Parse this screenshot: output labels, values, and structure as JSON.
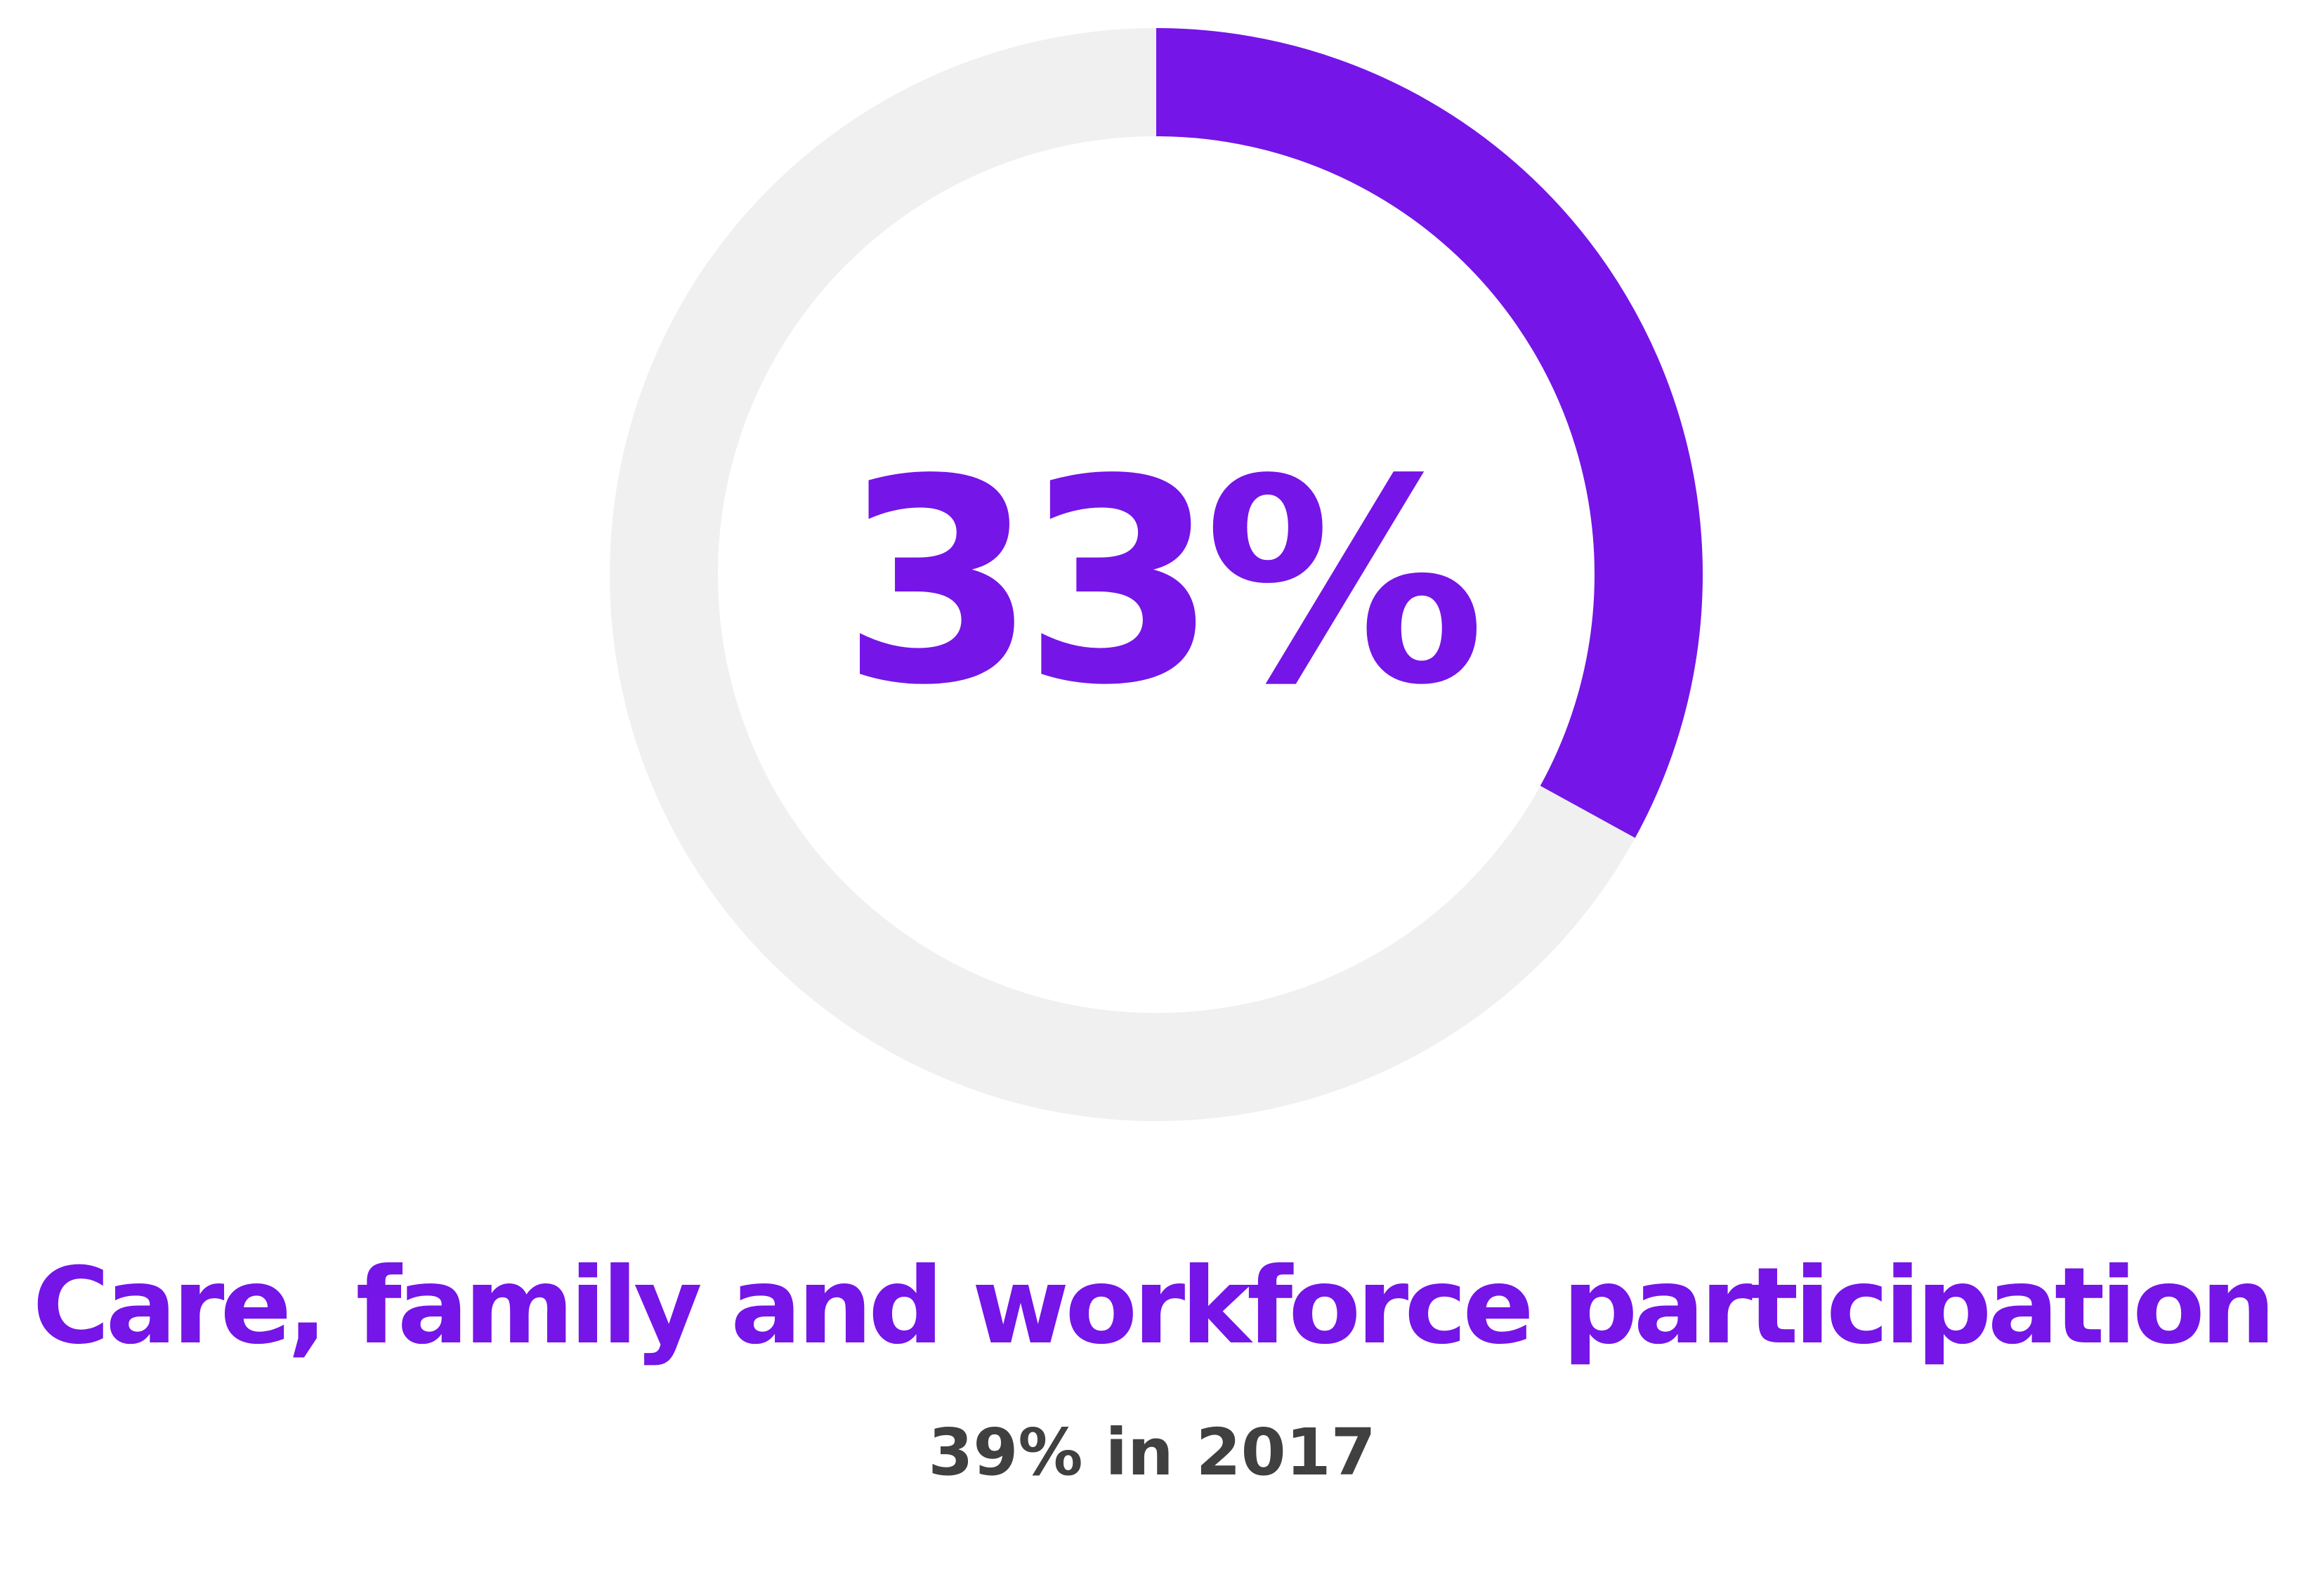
{
  "colors": {
    "accent": "#7515e8",
    "track": "#f0f0f0",
    "subtitle": "#404040"
  },
  "chart_data": {
    "type": "donut",
    "value_percent": 33,
    "remainder_percent": 67,
    "center_label": "33%",
    "title": "Care, family and workforce participation",
    "subtitle": "39% in 2017"
  }
}
